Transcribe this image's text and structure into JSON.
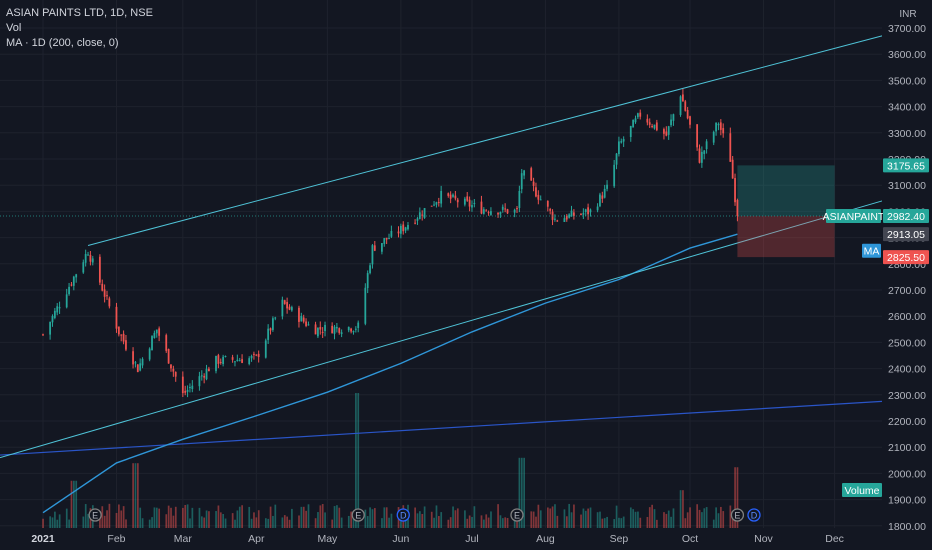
{
  "header": {
    "symbol_line": "ASIAN PAINTS LTD, 1D, NSE",
    "vol_label": "Vol",
    "ma_label": "MA · 1D (200, close, 0)"
  },
  "axis": {
    "currency": "INR",
    "price_ticks": [
      "3700.00",
      "3600.00",
      "3500.00",
      "3400.00",
      "3300.00",
      "3200.00",
      "3100.00",
      "3000.00",
      "2900.00",
      "2800.00",
      "2700.00",
      "2600.00",
      "2500.00",
      "2400.00",
      "2300.00",
      "2200.00",
      "2100.00",
      "2000.00",
      "1900.00",
      "1800.00"
    ],
    "time_ticks": [
      "2021",
      "Feb",
      "Mar",
      "Apr",
      "May",
      "Jun",
      "Jul",
      "Aug",
      "Sep",
      "Oct",
      "Nov",
      "Dec"
    ]
  },
  "badges": {
    "target": "3175.65",
    "last_name": "ASIANPAINT",
    "last_price": "2982.40",
    "gray": "2913.05",
    "ma_name": "MA",
    "stop": "2825.50",
    "volume": "Volume"
  },
  "colors": {
    "background": "#131722",
    "up": "#26a69a",
    "down": "#ef5350",
    "channel": "#4fc3d7",
    "ma200": "#2f96d8",
    "longline": "#2a55c8"
  },
  "chart_data": {
    "type": "candlestick",
    "title": "ASIAN PAINTS LTD, 1D, NSE",
    "ylim": [
      1750,
      3720
    ],
    "x_range": [
      "2021-01-01",
      "2021-12-31"
    ],
    "legend_placement": "top-left",
    "grid": true,
    "price_anchors": [
      {
        "date": "2021-01-01",
        "close": 2530
      },
      {
        "date": "2021-01-20",
        "close": 2850
      },
      {
        "date": "2021-02-02",
        "close": 2540
      },
      {
        "date": "2021-02-10",
        "close": 2400
      },
      {
        "date": "2021-02-18",
        "close": 2550
      },
      {
        "date": "2021-03-01",
        "close": 2300
      },
      {
        "date": "2021-03-15",
        "close": 2430
      },
      {
        "date": "2021-04-01",
        "close": 2440
      },
      {
        "date": "2021-04-12",
        "close": 2650
      },
      {
        "date": "2021-04-25",
        "close": 2550
      },
      {
        "date": "2021-05-14",
        "close": 2560
      },
      {
        "date": "2021-05-20",
        "close": 2860
      },
      {
        "date": "2021-06-01",
        "close": 2930
      },
      {
        "date": "2021-06-18",
        "close": 3060
      },
      {
        "date": "2021-07-05",
        "close": 3010
      },
      {
        "date": "2021-07-20",
        "close": 3000
      },
      {
        "date": "2021-07-22",
        "close": 3150
      },
      {
        "date": "2021-08-05",
        "close": 2970
      },
      {
        "date": "2021-08-20",
        "close": 3000
      },
      {
        "date": "2021-08-28",
        "close": 3100
      },
      {
        "date": "2021-09-01",
        "close": 3250
      },
      {
        "date": "2021-09-10",
        "close": 3370
      },
      {
        "date": "2021-09-21",
        "close": 3290
      },
      {
        "date": "2021-09-27",
        "close": 3450
      },
      {
        "date": "2021-10-05",
        "close": 3200
      },
      {
        "date": "2021-10-13",
        "close": 3340
      },
      {
        "date": "2021-10-18",
        "close": 3200
      },
      {
        "date": "2021-10-21",
        "close": 2982.4
      }
    ],
    "ma200": [
      {
        "date": "2021-01-01",
        "value": 1850
      },
      {
        "date": "2021-02-01",
        "value": 2040
      },
      {
        "date": "2021-03-01",
        "value": 2130
      },
      {
        "date": "2021-04-01",
        "value": 2220
      },
      {
        "date": "2021-05-01",
        "value": 2310
      },
      {
        "date": "2021-06-01",
        "value": 2420
      },
      {
        "date": "2021-07-01",
        "value": 2540
      },
      {
        "date": "2021-08-01",
        "value": 2650
      },
      {
        "date": "2021-09-01",
        "value": 2740
      },
      {
        "date": "2021-10-01",
        "value": 2860
      },
      {
        "date": "2021-10-21",
        "value": 2913.05
      }
    ],
    "long_ma_line": [
      {
        "date": "2021-01-01",
        "value": 2070
      },
      {
        "date": "2021-12-31",
        "value": 2275
      }
    ],
    "channel_upper": [
      {
        "date": "2021-01-20",
        "value": 2870
      },
      {
        "date": "2021-12-31",
        "value": 3670
      }
    ],
    "channel_lower": [
      {
        "date": "2021-01-01",
        "value": 2060
      },
      {
        "date": "2021-12-31",
        "value": 3040
      }
    ],
    "position": {
      "start": "2021-10-21",
      "end": "2021-12-01",
      "entry": 2982.4,
      "target": 3175.65,
      "stop": 2825.5
    },
    "volume_spikes": [
      {
        "date": "2021-01-14",
        "relative": 0.35
      },
      {
        "date": "2021-02-09",
        "relative": 0.48
      },
      {
        "date": "2021-05-14",
        "relative": 1.0
      },
      {
        "date": "2021-07-22",
        "relative": 0.52
      },
      {
        "date": "2021-09-27",
        "relative": 0.28
      },
      {
        "date": "2021-10-21",
        "relative": 0.45
      }
    ],
    "event_markers": [
      {
        "date": "2021-01-23",
        "label": "E"
      },
      {
        "date": "2021-05-14",
        "label": "E"
      },
      {
        "date": "2021-06-02",
        "label": "D"
      },
      {
        "date": "2021-07-20",
        "label": "E"
      },
      {
        "date": "2021-10-21",
        "label": "E"
      },
      {
        "date": "2021-10-28",
        "label": "D"
      }
    ]
  }
}
